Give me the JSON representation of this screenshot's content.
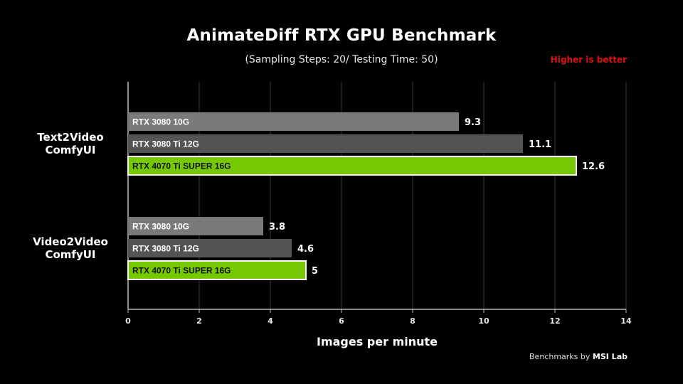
{
  "chart_data": {
    "type": "bar",
    "orientation": "horizontal",
    "title": "AnimateDiff RTX GPU Benchmark",
    "subtitle": "(Sampling Steps: 20/ Testing Time: 50)",
    "note": "Higher is better",
    "xlabel": "Images per minute",
    "ylabel": "",
    "xlim": [
      0,
      14
    ],
    "xticks": [
      0,
      2,
      4,
      6,
      8,
      10,
      12,
      14
    ],
    "grid": true,
    "legend": "none",
    "categories": [
      "Text2Video\nComfyUI",
      "Video2Video\nComfyUI"
    ],
    "series": [
      {
        "name": "RTX 3080 10G",
        "color": "#7a7a7a",
        "values": [
          9.3,
          3.8
        ]
      },
      {
        "name": "RTX 3080 Ti 12G",
        "color": "#545454",
        "values": [
          11.1,
          4.6
        ]
      },
      {
        "name": "RTX 4070 Ti SUPER 16G",
        "color": "#76c900",
        "values": [
          12.6,
          5
        ]
      }
    ],
    "value_labels": [
      [
        "9.3",
        "11.1",
        "12.6"
      ],
      [
        "3.8",
        "4.6",
        "5"
      ]
    ]
  },
  "footer": {
    "credit_prefix": "Benchmarks by",
    "credit_brand": "MSI Lab"
  },
  "colors": {
    "background": "#000000",
    "highlight_border": "#ffffff",
    "note": "#e01010",
    "grid": "#3a3a3a",
    "axis": "#bbbbbb"
  }
}
